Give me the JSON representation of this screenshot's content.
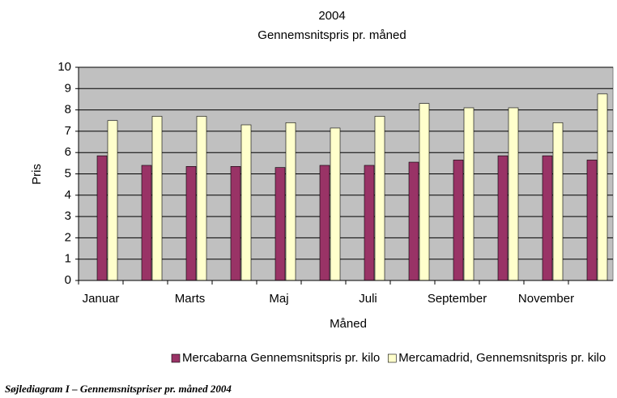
{
  "chart_data": {
    "type": "bar",
    "title": "2004",
    "subtitle": "Gennemsnitspris pr. måned",
    "x_label": "Måned",
    "y_label": "Pris",
    "categories": [
      "Januar",
      null,
      "Marts",
      null,
      "Maj",
      null,
      "Juli",
      null,
      "September",
      null,
      "November",
      null
    ],
    "series": [
      {
        "name": "Mercabarna Gennemsnitspris pr. kilo",
        "color": "#993366",
        "values": [
          5.85,
          5.4,
          5.35,
          5.35,
          5.3,
          5.4,
          5.4,
          5.55,
          5.65,
          5.85,
          5.85,
          5.65
        ]
      },
      {
        "name": "Mercamadrid, Gennemsnitspris pr. kilo",
        "color": "#ffffcc",
        "values": [
          7.5,
          7.7,
          7.7,
          7.3,
          7.4,
          7.15,
          7.7,
          8.3,
          8.1,
          8.1,
          7.4,
          8.75
        ]
      }
    ],
    "ylim": [
      0,
      10
    ],
    "yticks": [
      0,
      1,
      2,
      3,
      4,
      5,
      6,
      7,
      8,
      9,
      10
    ],
    "grid": true,
    "legend": "bottom",
    "caption": "Søjlediagram I – Gennemsnitspriser pr. måned 2004"
  }
}
